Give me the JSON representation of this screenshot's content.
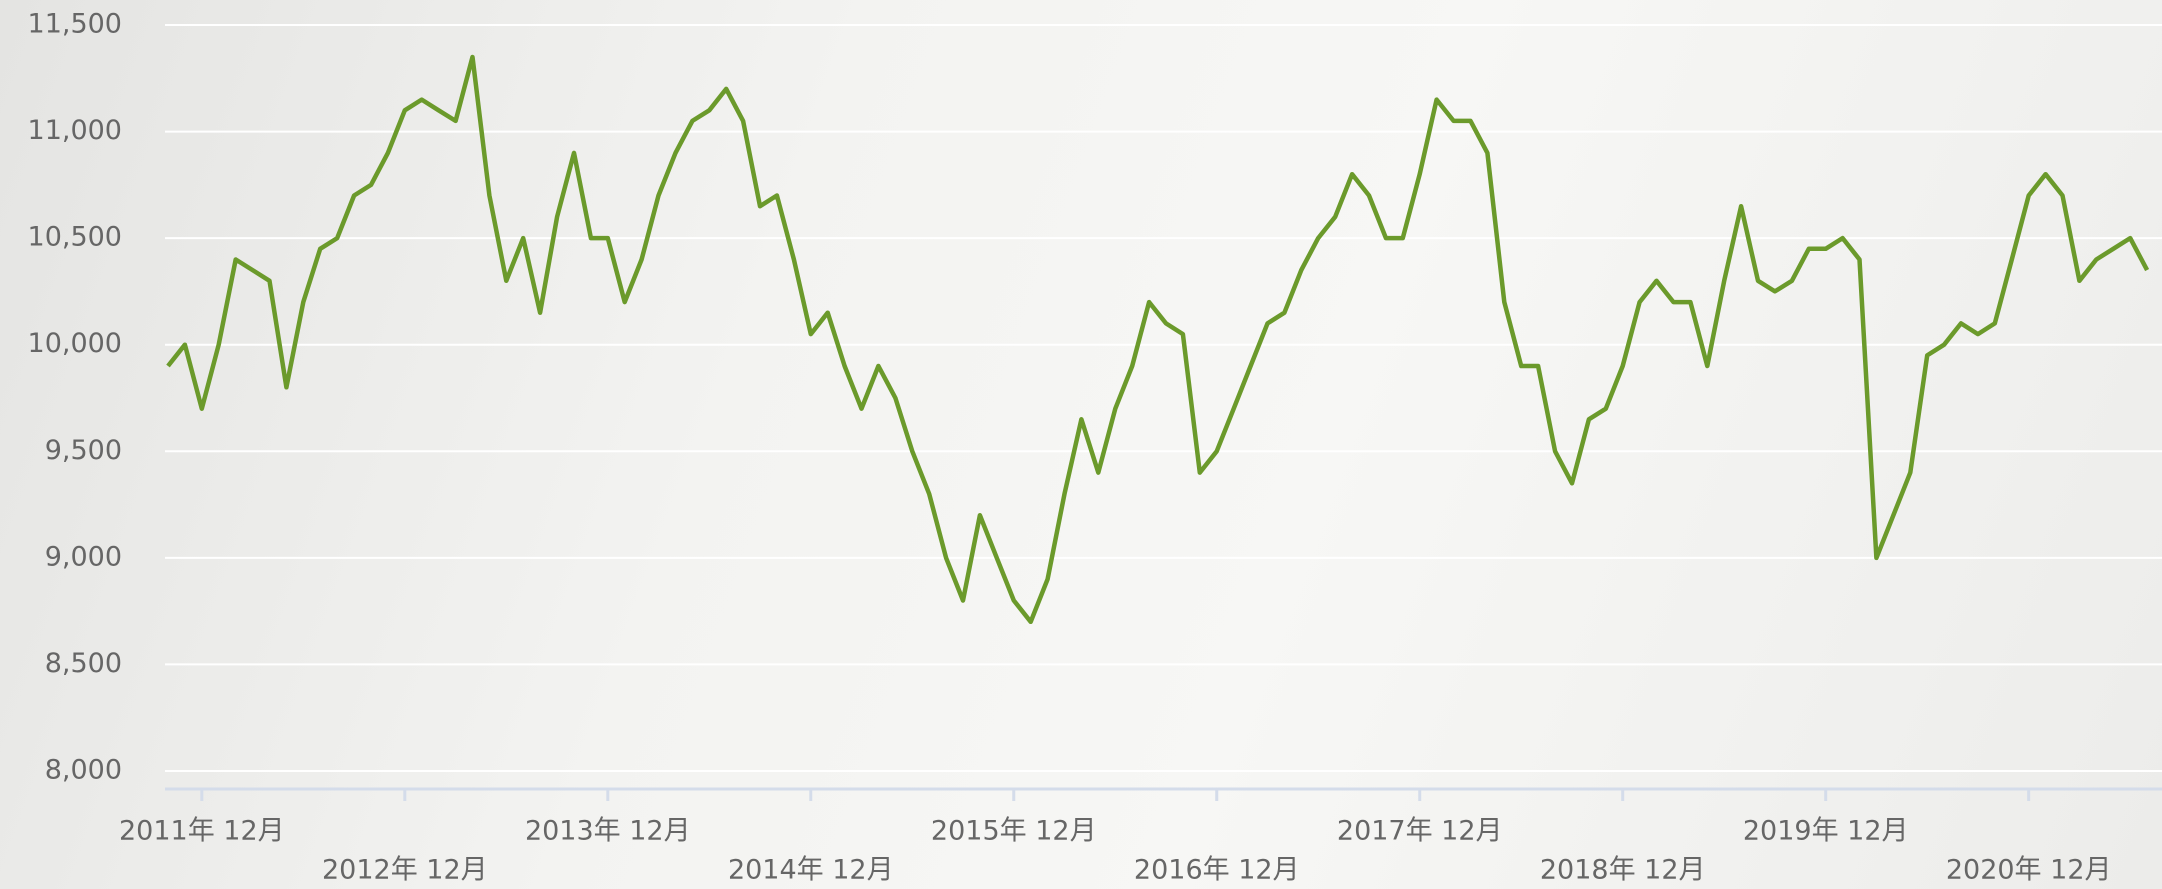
{
  "chart_data": {
    "type": "line",
    "x": [
      "2011-10",
      "2011-11",
      "2011-12",
      "2012-01",
      "2012-02",
      "2012-03",
      "2012-04",
      "2012-05",
      "2012-06",
      "2012-07",
      "2012-08",
      "2012-09",
      "2012-10",
      "2012-11",
      "2012-12",
      "2013-01",
      "2013-02",
      "2013-03",
      "2013-04",
      "2013-05",
      "2013-06",
      "2013-07",
      "2013-08",
      "2013-09",
      "2013-10",
      "2013-11",
      "2013-12",
      "2014-01",
      "2014-02",
      "2014-03",
      "2014-04",
      "2014-05",
      "2014-06",
      "2014-07",
      "2014-08",
      "2014-09",
      "2014-10",
      "2014-11",
      "2014-12",
      "2015-01",
      "2015-02",
      "2015-03",
      "2015-04",
      "2015-05",
      "2015-06",
      "2015-07",
      "2015-08",
      "2015-09",
      "2015-10",
      "2015-11",
      "2015-12",
      "2016-01",
      "2016-02",
      "2016-03",
      "2016-04",
      "2016-05",
      "2016-06",
      "2016-07",
      "2016-08",
      "2016-09",
      "2016-10",
      "2016-11",
      "2016-12",
      "2017-01",
      "2017-02",
      "2017-03",
      "2017-04",
      "2017-05",
      "2017-06",
      "2017-07",
      "2017-08",
      "2017-09",
      "2017-10",
      "2017-11",
      "2017-12",
      "2018-01",
      "2018-02",
      "2018-03",
      "2018-04",
      "2018-05",
      "2018-06",
      "2018-07",
      "2018-08",
      "2018-09",
      "2018-10",
      "2018-11",
      "2018-12",
      "2019-01",
      "2019-02",
      "2019-03",
      "2019-04",
      "2019-05",
      "2019-06",
      "2019-07",
      "2019-08",
      "2019-09",
      "2019-10",
      "2019-11",
      "2019-12",
      "2020-01",
      "2020-02",
      "2020-03",
      "2020-04",
      "2020-05",
      "2020-06",
      "2020-07",
      "2020-08",
      "2020-09",
      "2020-10",
      "2020-11",
      "2020-12",
      "2021-01",
      "2021-02",
      "2021-03",
      "2021-04",
      "2021-05",
      "2021-06",
      "2021-07"
    ],
    "series": [
      {
        "color": "#6b9a2b",
        "values": [
          9900,
          10000,
          9700,
          10000,
          10400,
          10350,
          10300,
          9800,
          10200,
          10450,
          10500,
          10700,
          10750,
          10900,
          11100,
          11150,
          11100,
          11050,
          11350,
          10700,
          10300,
          10500,
          10150,
          10600,
          10900,
          10500,
          10500,
          10200,
          10400,
          10700,
          10900,
          11050,
          11100,
          11200,
          11050,
          10650,
          10700,
          10400,
          10050,
          10150,
          9900,
          9700,
          9900,
          9750,
          9500,
          9300,
          9000,
          8800,
          9200,
          9000,
          8800,
          8700,
          8900,
          9300,
          9650,
          9400,
          9700,
          9900,
          10200,
          10100,
          10050,
          9400,
          9500,
          9700,
          9900,
          10100,
          10150,
          10350,
          10500,
          10600,
          10800,
          10700,
          10500,
          10500,
          10800,
          11150,
          11050,
          11050,
          10900,
          10200,
          9900,
          9900,
          9500,
          9350,
          9650,
          9700,
          9900,
          10200,
          10300,
          10200,
          10200,
          9900,
          10300,
          10650,
          10300,
          10250,
          10300,
          10450,
          10450,
          10500,
          10400,
          9000,
          9200,
          9400,
          9950,
          10000,
          10100,
          10050,
          10100,
          10400,
          10700,
          10800,
          10700,
          10300,
          10400,
          10450,
          10500,
          10350
        ]
      }
    ],
    "xlim": [
      "2011-10",
      "2021-08"
    ],
    "xticks": [
      {
        "value": "2011-12",
        "label": "2011年 12月"
      },
      {
        "value": "2012-12",
        "label": "2012年 12月"
      },
      {
        "value": "2013-12",
        "label": "2013年 12月"
      },
      {
        "value": "2014-12",
        "label": "2014年 12月"
      },
      {
        "value": "2015-12",
        "label": "2015年 12月"
      },
      {
        "value": "2016-12",
        "label": "2016年 12月"
      },
      {
        "value": "2017-12",
        "label": "2017年 12月"
      },
      {
        "value": "2018-12",
        "label": "2018年 12月"
      },
      {
        "value": "2019-12",
        "label": "2019年 12月"
      },
      {
        "value": "2020-12",
        "label": "2020年 12月"
      }
    ],
    "ylim": [
      8000,
      11500
    ],
    "yticks": [
      {
        "value": 8000,
        "label": "8,000"
      },
      {
        "value": 8500,
        "label": "8,500"
      },
      {
        "value": 9000,
        "label": "9,000"
      },
      {
        "value": 9500,
        "label": "9,500"
      },
      {
        "value": 10000,
        "label": "10,000"
      },
      {
        "value": 10500,
        "label": "10,500"
      },
      {
        "value": 11000,
        "label": "11,000"
      },
      {
        "value": 11500,
        "label": "11,500"
      }
    ],
    "grid": true
  }
}
